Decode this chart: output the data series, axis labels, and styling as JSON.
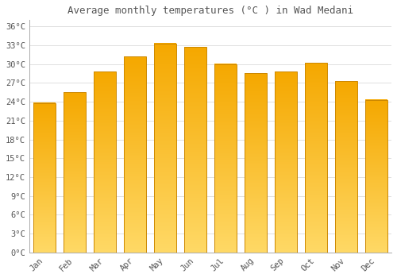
{
  "months": [
    "Jan",
    "Feb",
    "Mar",
    "Apr",
    "May",
    "Jun",
    "Jul",
    "Aug",
    "Sep",
    "Oct",
    "Nov",
    "Dec"
  ],
  "values": [
    23.8,
    25.5,
    28.8,
    31.2,
    33.3,
    32.7,
    30.0,
    28.5,
    28.8,
    30.2,
    27.3,
    24.3
  ],
  "title": "Average monthly temperatures (°C ) in Wad Medani",
  "bar_color_top": "#F5A800",
  "bar_color_bottom": "#FFD966",
  "bar_edge_color": "#CC8800",
  "ylim": [
    0,
    37
  ],
  "yticks": [
    0,
    3,
    6,
    9,
    12,
    15,
    18,
    21,
    24,
    27,
    30,
    33,
    36
  ],
  "ytick_labels": [
    "0°C",
    "3°C",
    "6°C",
    "9°C",
    "12°C",
    "15°C",
    "18°C",
    "21°C",
    "24°C",
    "27°C",
    "30°C",
    "33°C",
    "36°C"
  ],
  "background_color": "#ffffff",
  "grid_color": "#e0e0e0",
  "title_fontsize": 9,
  "tick_fontsize": 7.5,
  "font_color": "#555555",
  "bar_width": 0.72
}
